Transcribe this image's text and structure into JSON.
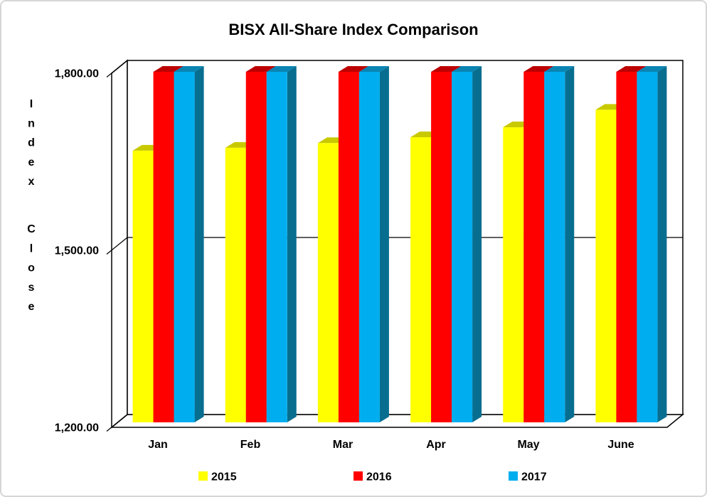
{
  "canvas": {
    "background": "#FFFFFF",
    "border_color": "#D6D6D6"
  },
  "chart_data": {
    "type": "bar",
    "projection": "3d-clustered-column",
    "title": "BISX All-Share Index Comparison",
    "ylabel": "Index Close",
    "xlabel": "",
    "categories": [
      "Jan",
      "Feb",
      "Mar",
      "Apr",
      "May",
      "June"
    ],
    "series": [
      {
        "name": "2015",
        "color": "#FFFF00",
        "top_color": "#C9C900",
        "side_color": "#A8A800",
        "values": [
          1665,
          1670,
          1678,
          1688,
          1705,
          1735
        ]
      },
      {
        "name": "2016",
        "color": "#FF0000",
        "top_color": "#BC0000",
        "side_color": "#9E0000",
        "values": [
          1800,
          1800,
          1800,
          1800,
          1800,
          1800
        ]
      },
      {
        "name": "2017",
        "color": "#00AEEF",
        "top_color": "#0A84B2",
        "side_color": "#086E90",
        "values": [
          1800,
          1800,
          1800,
          1800,
          1800,
          1800
        ]
      }
    ],
    "ylim": [
      1200,
      1800
    ],
    "yticks": [
      {
        "value": 1800,
        "label": "1,800.00"
      },
      {
        "value": 1500,
        "label": "1,500.00"
      },
      {
        "value": 1200,
        "label": "1,200.00"
      }
    ],
    "grid": "horizontal major gridlines every 300",
    "legend_position": "bottom",
    "note": "2015 values estimated from bar heights; 2016 and 2017 bars all reach the value-axis maximum (1,800.00) and are clipped at the top of the plot area"
  }
}
